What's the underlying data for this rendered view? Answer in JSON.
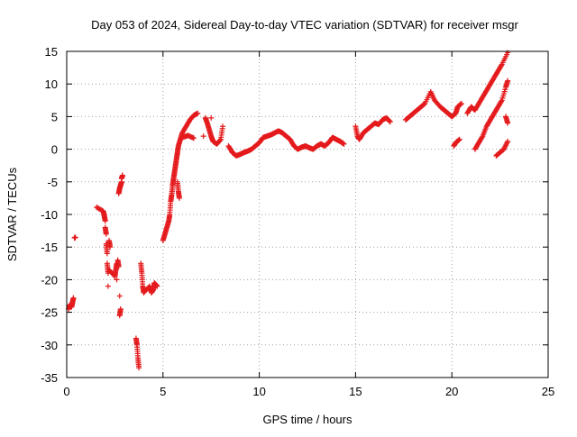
{
  "chart_data": {
    "type": "scatter",
    "title": "Day 053 of 2024, Sidereal Day-to-day VTEC variation (SDTVAR) for receiver msgr",
    "xlabel": "GPS time / hours",
    "ylabel": "SDTVAR / TECUs",
    "xlim": [
      0,
      25
    ],
    "ylim": [
      -35,
      15
    ],
    "x_ticks": [
      0,
      5,
      10,
      15,
      20,
      25
    ],
    "y_ticks": [
      -35,
      -30,
      -25,
      -20,
      -15,
      -10,
      -5,
      0,
      5,
      10,
      15
    ],
    "grid": true,
    "marker": "+",
    "series": [
      {
        "name": "SDTVAR",
        "color": "#e41a1c",
        "points": [
          [
            0.1,
            -24.5
          ],
          [
            0.15,
            -24.0
          ],
          [
            0.2,
            -23.8
          ],
          [
            0.25,
            -24.2
          ],
          [
            0.3,
            -23.5
          ],
          [
            0.35,
            -22.8
          ],
          [
            0.4,
            -13.6
          ],
          [
            0.45,
            -13.5
          ],
          [
            1.55,
            -8.9
          ],
          [
            1.9,
            -9.5
          ],
          [
            1.95,
            -10.2
          ],
          [
            2.0,
            -11.0
          ],
          [
            2.0,
            -12.0
          ],
          [
            2.05,
            -13.0
          ],
          [
            2.05,
            -14.5
          ],
          [
            2.1,
            -16.0
          ],
          [
            2.1,
            -17.5
          ],
          [
            2.15,
            -19.0
          ],
          [
            2.15,
            -21.0
          ],
          [
            2.2,
            -14.0
          ],
          [
            2.25,
            -15.0
          ],
          [
            2.2,
            -18.5
          ],
          [
            2.5,
            -19.5
          ],
          [
            2.55,
            -18.5
          ],
          [
            2.6,
            -17.5
          ],
          [
            2.6,
            -20.0
          ],
          [
            2.65,
            -17.0
          ],
          [
            2.7,
            -18.0
          ],
          [
            2.75,
            -22.5
          ],
          [
            2.75,
            -25.5
          ],
          [
            2.8,
            -24.5
          ],
          [
            2.7,
            -6.8
          ],
          [
            2.75,
            -6.0
          ],
          [
            2.8,
            -5.5
          ],
          [
            2.85,
            -5.0
          ],
          [
            2.85,
            -4.5
          ],
          [
            2.9,
            -4.0
          ],
          [
            3.6,
            -29.0
          ],
          [
            3.65,
            -30.0
          ],
          [
            3.7,
            -32.0
          ],
          [
            3.75,
            -33.5
          ],
          [
            3.85,
            -17.5
          ],
          [
            3.9,
            -19.0
          ],
          [
            3.95,
            -21.0
          ],
          [
            4.0,
            -22.0
          ],
          [
            4.3,
            -21.0
          ],
          [
            4.4,
            -22.0
          ],
          [
            4.5,
            -21.5
          ],
          [
            4.55,
            -20.5
          ],
          [
            4.7,
            -21.0
          ],
          [
            5.0,
            -14.0
          ],
          [
            5.1,
            -13.0
          ],
          [
            5.2,
            -12.0
          ],
          [
            5.3,
            -11.0
          ],
          [
            5.35,
            -10.0
          ],
          [
            5.4,
            -8.0
          ],
          [
            5.45,
            -7.0
          ],
          [
            5.5,
            -5.5
          ],
          [
            5.55,
            -4.5
          ],
          [
            5.6,
            -3.5
          ],
          [
            5.65,
            -2.5
          ],
          [
            5.7,
            -1.5
          ],
          [
            5.75,
            -0.5
          ],
          [
            5.8,
            0.5
          ],
          [
            5.9,
            1.5
          ],
          [
            6.0,
            2.5
          ],
          [
            6.2,
            3.5
          ],
          [
            6.4,
            4.5
          ],
          [
            6.6,
            5.2
          ],
          [
            6.8,
            5.5
          ],
          [
            5.75,
            -5.0
          ],
          [
            5.8,
            -6.5
          ],
          [
            5.85,
            -7.5
          ],
          [
            6.0,
            1.8
          ],
          [
            6.3,
            2.1
          ],
          [
            6.6,
            1.7
          ],
          [
            7.2,
            4.8
          ],
          [
            7.3,
            4.0
          ],
          [
            7.4,
            3.0
          ],
          [
            7.5,
            2.0
          ],
          [
            7.6,
            1.2
          ],
          [
            7.8,
            0.8
          ],
          [
            8.0,
            1.5
          ],
          [
            8.1,
            3.5
          ],
          [
            7.1,
            2.0
          ],
          [
            7.5,
            4.8
          ],
          [
            8.4,
            0.5
          ],
          [
            8.6,
            -0.5
          ],
          [
            8.8,
            -1.0
          ],
          [
            9.0,
            -0.8
          ],
          [
            9.2,
            -0.5
          ],
          [
            9.4,
            -0.3
          ],
          [
            9.6,
            0.0
          ],
          [
            9.8,
            0.5
          ],
          [
            10.0,
            1.0
          ],
          [
            10.2,
            1.8
          ],
          [
            10.4,
            2.0
          ],
          [
            10.6,
            2.2
          ],
          [
            10.8,
            2.5
          ],
          [
            11.0,
            2.8
          ],
          [
            11.2,
            2.5
          ],
          [
            11.4,
            2.0
          ],
          [
            11.6,
            1.5
          ],
          [
            11.8,
            0.5
          ],
          [
            12.0,
            0.0
          ],
          [
            12.2,
            0.3
          ],
          [
            12.4,
            0.5
          ],
          [
            12.6,
            0.2
          ],
          [
            12.8,
            0.0
          ],
          [
            13.0,
            0.5
          ],
          [
            13.2,
            0.8
          ],
          [
            13.4,
            0.5
          ],
          [
            13.6,
            1.0
          ],
          [
            13.8,
            1.8
          ],
          [
            14.0,
            1.5
          ],
          [
            14.2,
            1.2
          ],
          [
            14.4,
            0.8
          ],
          [
            15.0,
            3.5
          ],
          [
            15.1,
            2.0
          ],
          [
            15.2,
            1.5
          ],
          [
            15.4,
            2.5
          ],
          [
            15.6,
            3.0
          ],
          [
            15.8,
            3.5
          ],
          [
            16.0,
            4.0
          ],
          [
            16.2,
            3.8
          ],
          [
            16.4,
            4.5
          ],
          [
            16.6,
            4.8
          ],
          [
            16.8,
            4.2
          ],
          [
            17.6,
            4.5
          ],
          [
            17.8,
            5.0
          ],
          [
            18.0,
            5.5
          ],
          [
            18.2,
            6.0
          ],
          [
            18.4,
            6.5
          ],
          [
            18.6,
            7.0
          ],
          [
            18.9,
            8.8
          ],
          [
            19.1,
            7.5
          ],
          [
            19.4,
            6.5
          ],
          [
            19.6,
            6.0
          ],
          [
            19.8,
            5.5
          ],
          [
            20.0,
            5.0
          ],
          [
            20.2,
            5.5
          ],
          [
            20.3,
            6.5
          ],
          [
            20.5,
            7.0
          ],
          [
            20.1,
            0.5
          ],
          [
            20.2,
            1.0
          ],
          [
            20.4,
            1.5
          ],
          [
            20.8,
            5.5
          ],
          [
            21.0,
            6.5
          ],
          [
            21.2,
            6.0
          ],
          [
            21.4,
            7.0
          ],
          [
            21.6,
            8.0
          ],
          [
            21.8,
            9.0
          ],
          [
            22.0,
            10.0
          ],
          [
            22.2,
            11.0
          ],
          [
            22.4,
            12.0
          ],
          [
            22.6,
            13.0
          ],
          [
            22.9,
            14.8
          ],
          [
            21.2,
            0.0
          ],
          [
            21.4,
            1.0
          ],
          [
            21.6,
            2.0
          ],
          [
            21.8,
            3.5
          ],
          [
            22.0,
            4.5
          ],
          [
            22.2,
            5.5
          ],
          [
            22.4,
            6.5
          ],
          [
            22.6,
            7.5
          ],
          [
            22.8,
            9.5
          ],
          [
            22.9,
            10.5
          ],
          [
            22.8,
            5.0
          ],
          [
            22.9,
            4.0
          ],
          [
            22.3,
            -1.0
          ],
          [
            22.5,
            -0.5
          ],
          [
            22.7,
            0.0
          ],
          [
            22.9,
            1.2
          ]
        ]
      }
    ]
  }
}
